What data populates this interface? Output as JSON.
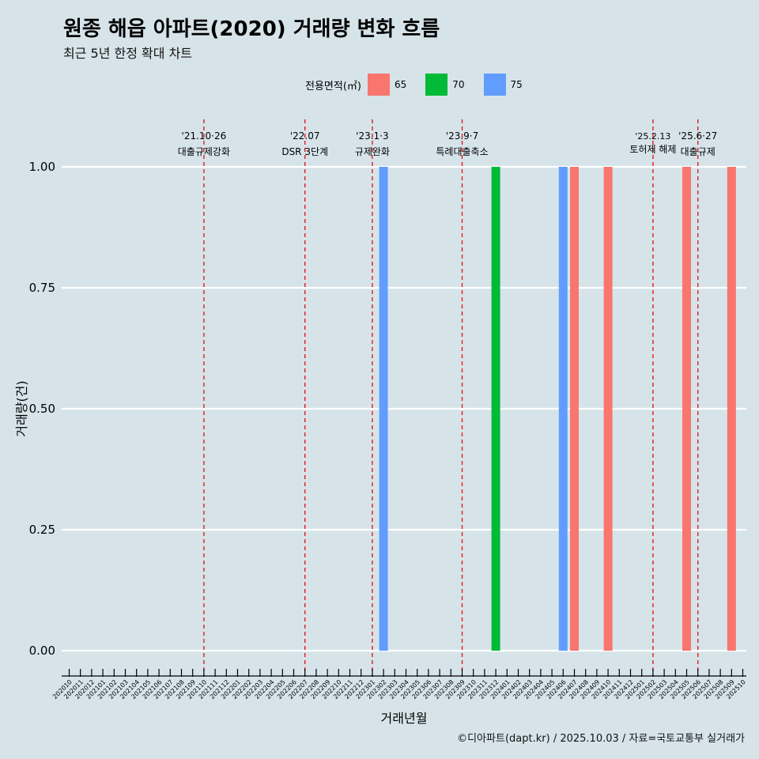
{
  "title": "원종 해읍 아파트(2020) 거래량 변화 흐름",
  "subtitle": "최근 5년 한정 확대 차트",
  "caption": "©디아파트(dapt.kr) / 2025.10.03 / 자료=국토교통부 실거래가",
  "legend": {
    "title": "전용면적(㎡)",
    "items": [
      {
        "label": "65",
        "color": "#f8766d"
      },
      {
        "label": "70",
        "color": "#00ba38"
      },
      {
        "label": "75",
        "color": "#619cff"
      }
    ]
  },
  "chart_data": {
    "type": "bar",
    "xlabel": "거래년월",
    "ylabel": "거래량(건)",
    "ylim": [
      0,
      1
    ],
    "yticks": [
      "0.00",
      "0.25",
      "0.50",
      "0.75",
      "1.00"
    ],
    "categories": [
      "202010",
      "202011",
      "202012",
      "202101",
      "202102",
      "202103",
      "202104",
      "202105",
      "202106",
      "202107",
      "202108",
      "202109",
      "202110",
      "202111",
      "202112",
      "202201",
      "202202",
      "202203",
      "202204",
      "202205",
      "202206",
      "202207",
      "202208",
      "202209",
      "202210",
      "202211",
      "202212",
      "202301",
      "202302",
      "202303",
      "202304",
      "202305",
      "202306",
      "202307",
      "202308",
      "202309",
      "202310",
      "202311",
      "202312",
      "202401",
      "202402",
      "202403",
      "202404",
      "202405",
      "202406",
      "202407",
      "202408",
      "202409",
      "202410",
      "202411",
      "202412",
      "202501",
      "202502",
      "202503",
      "202504",
      "202505",
      "202506",
      "202507",
      "202508",
      "202509",
      "202510"
    ],
    "bars": [
      {
        "month": "202302",
        "area": "75",
        "value": 1
      },
      {
        "month": "202312",
        "area": "70",
        "value": 1
      },
      {
        "month": "202406",
        "area": "75",
        "value": 1
      },
      {
        "month": "202407",
        "area": "65",
        "value": 1
      },
      {
        "month": "202410",
        "area": "65",
        "value": 1
      },
      {
        "month": "202505",
        "area": "65",
        "value": 1
      },
      {
        "month": "202509",
        "area": "65",
        "value": 1
      }
    ],
    "events": [
      {
        "month": "202110",
        "date": "'21.10·26",
        "label": "대출규제강화"
      },
      {
        "month": "202207",
        "date": "'22.07",
        "label": "DSR 3단계"
      },
      {
        "month": "202301",
        "date": "'23.1·3",
        "label": "규제완화"
      },
      {
        "month": "202309",
        "date": "'23.9·7",
        "label": "특례대출축소"
      },
      {
        "month": "202502",
        "date": "'25.2.13",
        "label": "토허제 해제"
      },
      {
        "month": "202506",
        "date": "'25.6·27",
        "label": "대출규제"
      }
    ]
  }
}
